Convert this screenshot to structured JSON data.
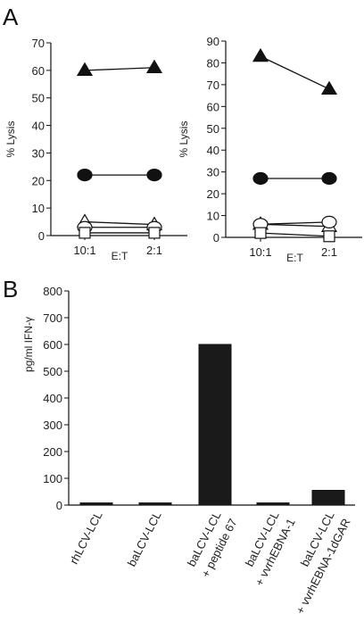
{
  "panel_labels": [
    "A",
    "B"
  ],
  "chart_data": [
    {
      "type": "line",
      "panel": "A",
      "xlabel": "E:T",
      "ylabel": "% Lysis",
      "categories": [
        "10:1",
        "2:1"
      ],
      "ylim": [
        0,
        70
      ],
      "yticks": [
        0,
        10,
        20,
        30,
        40,
        50,
        60,
        70
      ],
      "grid": false,
      "series": [
        {
          "marker": "triangle-filled",
          "values": [
            60,
            61
          ]
        },
        {
          "marker": "circle-filled",
          "values": [
            22,
            22
          ]
        },
        {
          "marker": "triangle-open",
          "values": [
            5,
            4
          ]
        },
        {
          "marker": "circle-open",
          "values": [
            3,
            3
          ]
        },
        {
          "marker": "square-open",
          "values": [
            1,
            1
          ]
        }
      ]
    },
    {
      "type": "line",
      "panel": "A",
      "xlabel": "E:T",
      "ylabel": "% Lysis",
      "categories": [
        "10:1",
        "2:1"
      ],
      "ylim": [
        0,
        90
      ],
      "yticks": [
        0,
        10,
        20,
        30,
        40,
        50,
        60,
        70,
        80,
        90
      ],
      "grid": false,
      "series": [
        {
          "marker": "triangle-filled",
          "values": [
            83,
            68
          ]
        },
        {
          "marker": "circle-filled",
          "values": [
            27,
            27
          ]
        },
        {
          "marker": "triangle-open",
          "values": [
            6,
            5
          ]
        },
        {
          "marker": "circle-open",
          "values": [
            6,
            7
          ]
        },
        {
          "marker": "square-open",
          "values": [
            2,
            0.5
          ]
        }
      ]
    },
    {
      "type": "bar",
      "panel": "B",
      "ylabel": "pg/ml IFN-γ",
      "ylim": [
        0,
        800
      ],
      "yticks": [
        0,
        100,
        200,
        300,
        400,
        500,
        600,
        700,
        800
      ],
      "grid": false,
      "categories": [
        [
          "rhLCV-LCL"
        ],
        [
          "baLCV-LCL"
        ],
        [
          "baLCV-LCL",
          "+ peptide 67"
        ],
        [
          "baLCV-LCL",
          "+ vvrhEBNA-1"
        ],
        [
          "baLCV-LCL",
          "+ vvrhEBNA-1dGAR"
        ]
      ],
      "values": [
        8,
        8,
        600,
        8,
        55
      ]
    }
  ]
}
